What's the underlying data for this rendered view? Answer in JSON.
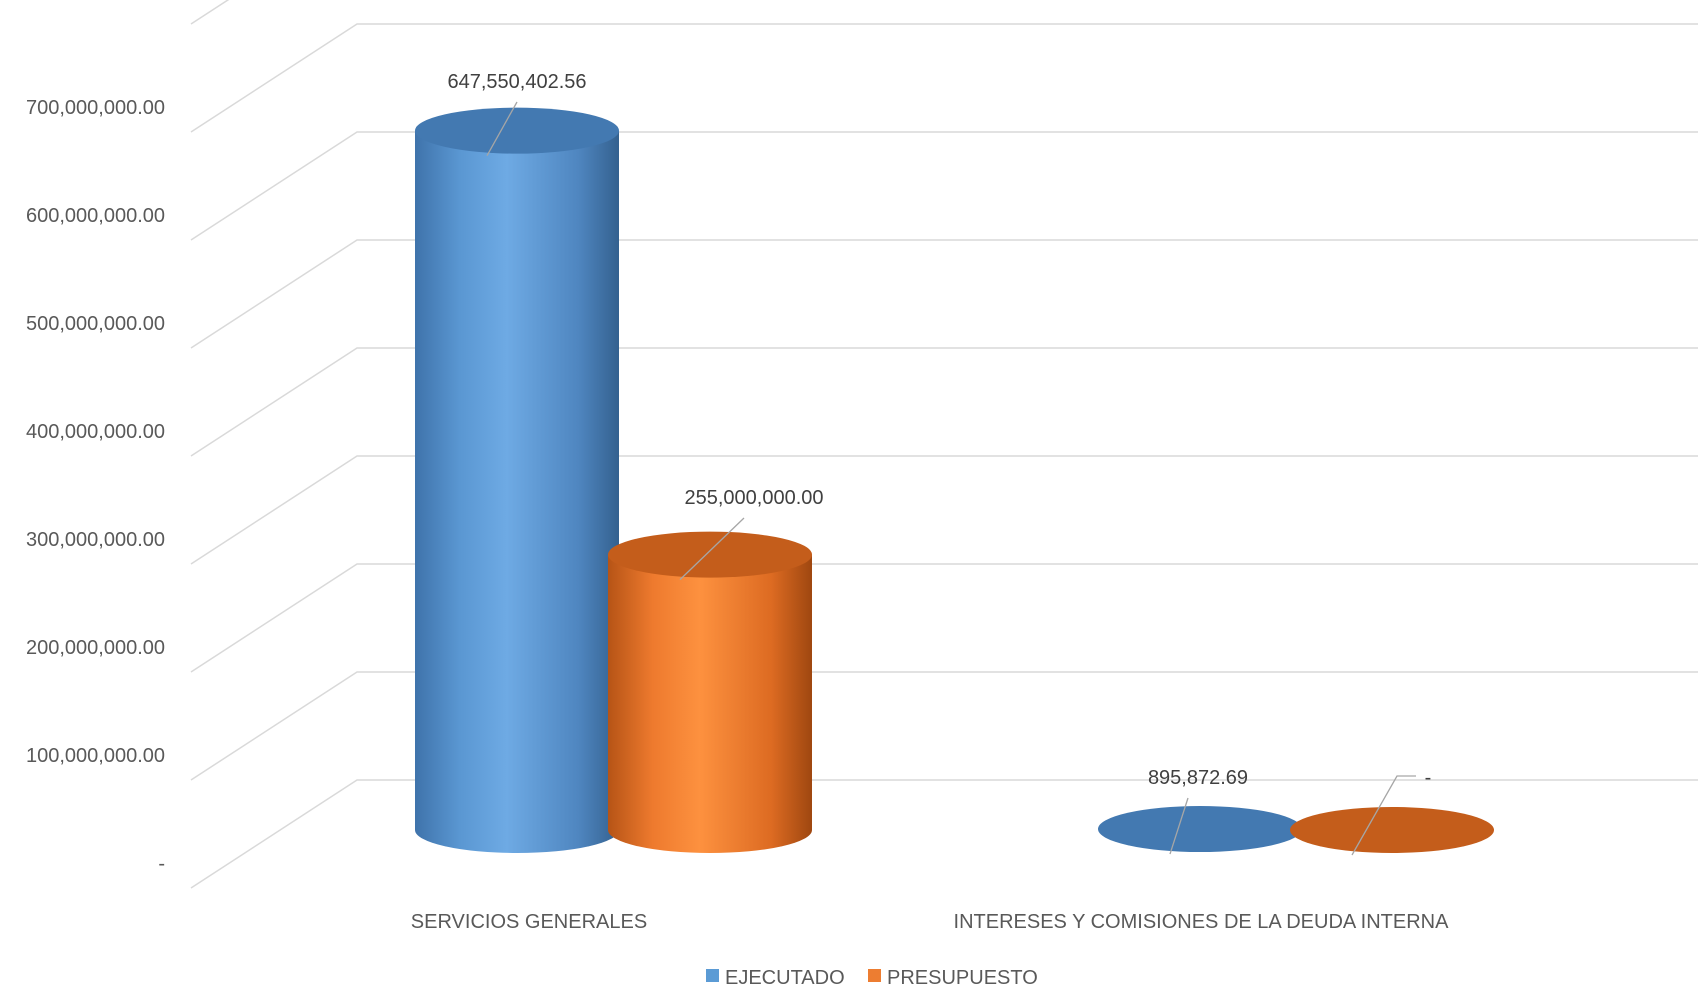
{
  "chart_data": {
    "type": "bar",
    "title": "",
    "xlabel": "",
    "ylabel": "",
    "categories": [
      "SERVICIOS GENERALES",
      "INTERESES Y COMISIONES DE LA DEUDA INTERNA"
    ],
    "series": [
      {
        "name": "EJECUTADO",
        "color": "#5b9bd5",
        "values": [
          647550402.56,
          895872.69
        ],
        "data_labels": [
          "647,550,402.56",
          "895,872.69"
        ]
      },
      {
        "name": "PRESUPUESTO",
        "color": "#ed7d31",
        "values": [
          255000000,
          0
        ],
        "data_labels": [
          "255,000,000.00",
          "-"
        ]
      }
    ],
    "ylim": [
      0,
      700000000
    ],
    "yticks": [
      0,
      100000000,
      200000000,
      300000000,
      400000000,
      500000000,
      600000000,
      700000000
    ],
    "ytick_labels": [
      "-",
      "100,000,000.00",
      "200,000,000.00",
      "300,000,000.00",
      "400,000,000.00",
      "500,000,000.00",
      "600,000,000.00",
      "700,000,000.00"
    ],
    "grid": true,
    "style": "3d-cylinder",
    "legend": "bottom"
  }
}
